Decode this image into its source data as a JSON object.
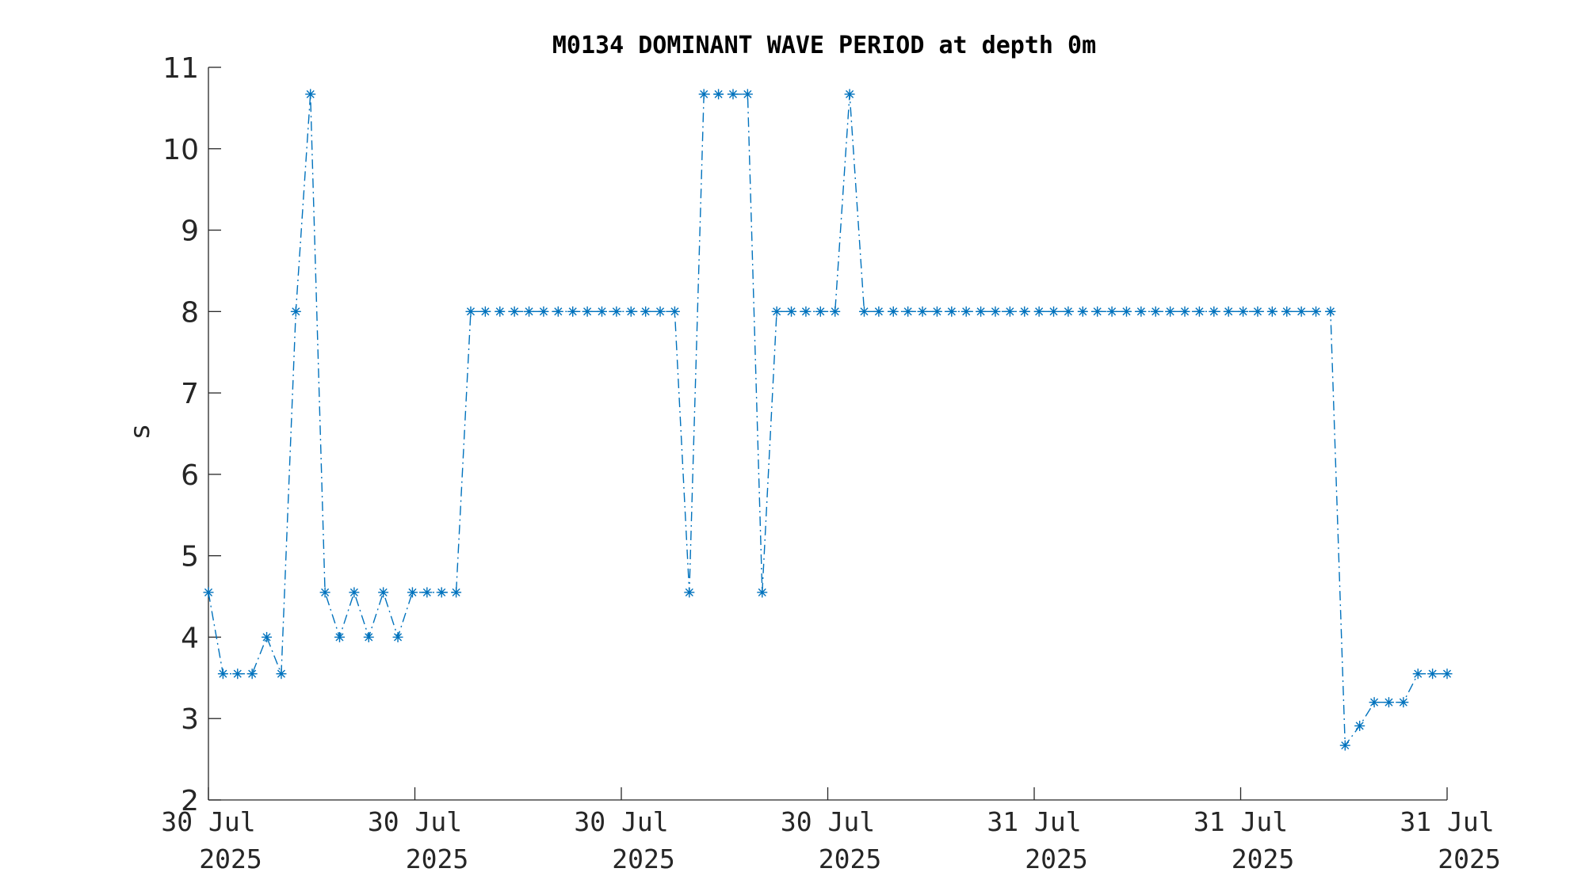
{
  "chart_data": {
    "type": "line",
    "title": "M0134 DOMINANT WAVE PERIOD at depth 0m",
    "xlabel": "",
    "ylabel": "s",
    "ylim": [
      2,
      11
    ],
    "yticks": [
      2,
      3,
      4,
      5,
      6,
      7,
      8,
      9,
      10,
      11
    ],
    "xticks": [
      {
        "line1": "30 Jul",
        "line2": "2025"
      },
      {
        "line1": "30 Jul",
        "line2": "2025"
      },
      {
        "line1": "30 Jul",
        "line2": "2025"
      },
      {
        "line1": "30 Jul",
        "line2": "2025"
      },
      {
        "line1": "31 Jul",
        "line2": "2025"
      },
      {
        "line1": "31 Jul",
        "line2": "2025"
      },
      {
        "line1": "31 Jul",
        "line2": "2025"
      }
    ],
    "grid": false,
    "line_style": "dash-dot",
    "marker": "*",
    "color": "#0072BD",
    "series": [
      {
        "name": "",
        "values": [
          4.55,
          3.55,
          3.55,
          3.55,
          4.0,
          3.55,
          8.0,
          10.67,
          4.55,
          4.0,
          4.55,
          4.0,
          4.55,
          4.0,
          4.55,
          4.55,
          4.55,
          4.55,
          8.0,
          8.0,
          8.0,
          8.0,
          8.0,
          8.0,
          8.0,
          8.0,
          8.0,
          8.0,
          8.0,
          8.0,
          8.0,
          8.0,
          8.0,
          4.55,
          10.67,
          10.67,
          10.67,
          10.67,
          4.55,
          8.0,
          8.0,
          8.0,
          8.0,
          8.0,
          10.67,
          8.0,
          8.0,
          8.0,
          8.0,
          8.0,
          8.0,
          8.0,
          8.0,
          8.0,
          8.0,
          8.0,
          8.0,
          8.0,
          8.0,
          8.0,
          8.0,
          8.0,
          8.0,
          8.0,
          8.0,
          8.0,
          8.0,
          8.0,
          8.0,
          8.0,
          8.0,
          8.0,
          8.0,
          8.0,
          8.0,
          8.0,
          8.0,
          8.0,
          2.67,
          2.91,
          3.2,
          3.2,
          3.2,
          3.55,
          3.55,
          3.55
        ]
      }
    ]
  }
}
